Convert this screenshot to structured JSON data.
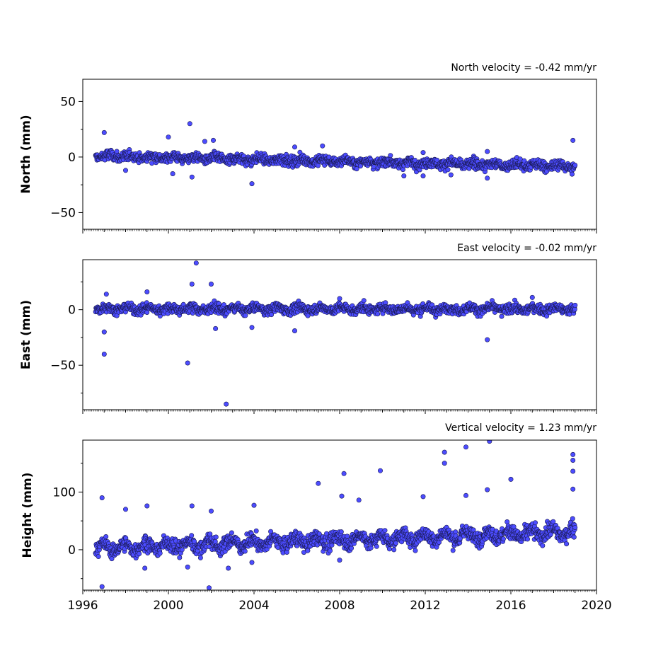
{
  "chart_data": [
    {
      "type": "scatter",
      "title": "North velocity = -0.42 mm/yr",
      "ylabel": "North (mm)",
      "ylim": [
        -65,
        70
      ],
      "xlim": [
        1996,
        2020
      ],
      "yticks": [
        50,
        0,
        -50
      ],
      "ytick_labels": [
        "50",
        "0",
        "−50"
      ],
      "trend": {
        "start_value": 1.0,
        "rate_mm_per_yr": -0.42
      },
      "point_color": "#4c4cff",
      "outliers": [
        {
          "x": 1997.0,
          "y": 22
        },
        {
          "x": 2001.0,
          "y": 30
        },
        {
          "x": 2000.0,
          "y": 18
        },
        {
          "x": 2002.1,
          "y": 15
        },
        {
          "x": 2001.7,
          "y": 14
        },
        {
          "x": 2003.9,
          "y": -24
        },
        {
          "x": 2001.1,
          "y": -18
        },
        {
          "x": 1998.0,
          "y": -12
        },
        {
          "x": 2000.2,
          "y": -15
        },
        {
          "x": 2005.9,
          "y": 9
        },
        {
          "x": 2007.2,
          "y": 10
        },
        {
          "x": 2011.9,
          "y": 4
        },
        {
          "x": 2011.0,
          "y": -17
        },
        {
          "x": 2011.9,
          "y": -17
        },
        {
          "x": 2014.9,
          "y": -19
        },
        {
          "x": 2014.9,
          "y": 5
        },
        {
          "x": 2018.9,
          "y": 15
        },
        {
          "x": 2013.2,
          "y": -16
        }
      ]
    },
    {
      "type": "scatter",
      "title": "East velocity = -0.02 mm/yr",
      "ylabel": "East (mm)",
      "ylim": [
        -90,
        45
      ],
      "xlim": [
        1996,
        2020
      ],
      "yticks": [
        0,
        -50
      ],
      "ytick_labels": [
        "0",
        "−50"
      ],
      "trend": {
        "start_value": 1.0,
        "rate_mm_per_yr": -0.02
      },
      "point_color": "#4c4cff",
      "outliers": [
        {
          "x": 2001.3,
          "y": 42
        },
        {
          "x": 1997.0,
          "y": -40
        },
        {
          "x": 2000.9,
          "y": -48
        },
        {
          "x": 2002.7,
          "y": -85
        },
        {
          "x": 2014.9,
          "y": -27
        },
        {
          "x": 2001.1,
          "y": 23
        },
        {
          "x": 2002.0,
          "y": 23
        },
        {
          "x": 1997.0,
          "y": -20
        },
        {
          "x": 2003.9,
          "y": -16
        },
        {
          "x": 2005.9,
          "y": -19
        },
        {
          "x": 1999.0,
          "y": 16
        },
        {
          "x": 2002.2,
          "y": -17
        },
        {
          "x": 2017.0,
          "y": 11
        },
        {
          "x": 1997.1,
          "y": 14
        },
        {
          "x": 2008.0,
          "y": 10
        }
      ]
    },
    {
      "type": "scatter",
      "title": "Vertical velocity = 1.23 mm/yr",
      "ylabel": "Height (mm)",
      "ylim": [
        -70,
        190
      ],
      "xlim": [
        1996,
        2020
      ],
      "yticks": [
        100,
        0
      ],
      "ytick_labels": [
        "100",
        "0"
      ],
      "xticks": [
        1996,
        2000,
        2004,
        2008,
        2012,
        2016,
        2020
      ],
      "xtick_labels": [
        "1996",
        "2000",
        "2004",
        "2008",
        "2012",
        "2016",
        "2020"
      ],
      "trend": {
        "start_value": 3.0,
        "rate_mm_per_yr": 1.23
      },
      "point_color": "#4c4cff",
      "outliers": [
        {
          "x": 1996.9,
          "y": -64
        },
        {
          "x": 2001.9,
          "y": -66
        },
        {
          "x": 1996.9,
          "y": 90
        },
        {
          "x": 1998.0,
          "y": 70
        },
        {
          "x": 1999.0,
          "y": 76
        },
        {
          "x": 2001.1,
          "y": 76
        },
        {
          "x": 2002.0,
          "y": 67
        },
        {
          "x": 2002.8,
          "y": -32
        },
        {
          "x": 2004.0,
          "y": 77
        },
        {
          "x": 2007.0,
          "y": 115
        },
        {
          "x": 2008.2,
          "y": 132
        },
        {
          "x": 2008.1,
          "y": 93
        },
        {
          "x": 2009.9,
          "y": 137
        },
        {
          "x": 2012.9,
          "y": 169
        },
        {
          "x": 2012.9,
          "y": 150
        },
        {
          "x": 2013.9,
          "y": 178
        },
        {
          "x": 2013.9,
          "y": 94
        },
        {
          "x": 2015.0,
          "y": 188
        },
        {
          "x": 2014.9,
          "y": 104
        },
        {
          "x": 2016.0,
          "y": 122
        },
        {
          "x": 2018.9,
          "y": 165
        },
        {
          "x": 2018.9,
          "y": 155
        },
        {
          "x": 2018.9,
          "y": 136
        },
        {
          "x": 2018.9,
          "y": 105
        },
        {
          "x": 2008.9,
          "y": 86
        },
        {
          "x": 2011.9,
          "y": 92
        },
        {
          "x": 2003.9,
          "y": -22
        },
        {
          "x": 2008.0,
          "y": -18
        },
        {
          "x": 2000.9,
          "y": -30
        },
        {
          "x": 1998.9,
          "y": -32
        }
      ]
    }
  ]
}
